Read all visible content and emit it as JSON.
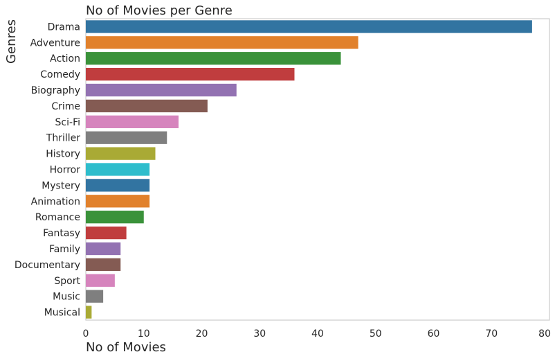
{
  "chart_data": {
    "type": "bar",
    "orientation": "horizontal",
    "title": "No of Movies per Genre",
    "xlabel": "No of Movies",
    "ylabel": "Genres",
    "xlim": [
      0,
      80
    ],
    "xticks": [
      0,
      10,
      20,
      30,
      40,
      50,
      60,
      70,
      80
    ],
    "grid": false,
    "categories": [
      "Drama",
      "Adventure",
      "Action",
      "Comedy",
      "Biography",
      "Crime",
      "Sci-Fi",
      "Thriller",
      "History",
      "Horror",
      "Mystery",
      "Animation",
      "Romance",
      "Fantasy",
      "Family",
      "Documentary",
      "Sport",
      "Music",
      "Musical"
    ],
    "values": [
      77,
      47,
      44,
      36,
      26,
      21,
      16,
      14,
      12,
      11,
      11,
      11,
      10,
      7,
      6,
      6,
      5,
      3,
      1
    ],
    "colors": [
      "#3274a1",
      "#e1812c",
      "#3a923a",
      "#c03d3e",
      "#9372b2",
      "#845b53",
      "#d684bd",
      "#7f7f7f",
      "#a9aa35",
      "#2ebdcc",
      "#3274a1",
      "#e1812c",
      "#3a923a",
      "#c03d3e",
      "#9372b2",
      "#845b53",
      "#d684bd",
      "#7f7f7f",
      "#a9aa35"
    ]
  }
}
